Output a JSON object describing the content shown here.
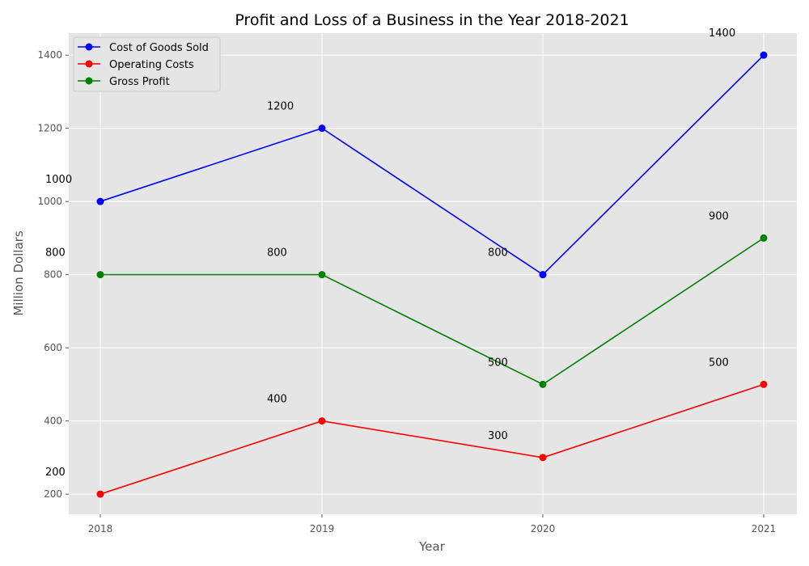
{
  "chart_data": {
    "type": "line",
    "title": "Profit and Loss of a Business in the Year 2018-2021",
    "xlabel": "Year",
    "ylabel": "Million Dollars",
    "categories": [
      "2018",
      "2019",
      "2020",
      "2021"
    ],
    "yticks": [
      200,
      400,
      600,
      800,
      1000,
      1200,
      1400
    ],
    "ylim": [
      145,
      1460
    ],
    "grid": true,
    "legend_position": "top-left",
    "series": [
      {
        "name": "Cost of Goods Sold",
        "color": "#0000ff",
        "values": [
          1000,
          1200,
          800,
          1400
        ]
      },
      {
        "name": "Operating Costs",
        "color": "#ff0000",
        "values": [
          200,
          400,
          300,
          500
        ]
      },
      {
        "name": "Gross Profit",
        "color": "#008000",
        "values": [
          800,
          800,
          500,
          900
        ]
      }
    ]
  }
}
